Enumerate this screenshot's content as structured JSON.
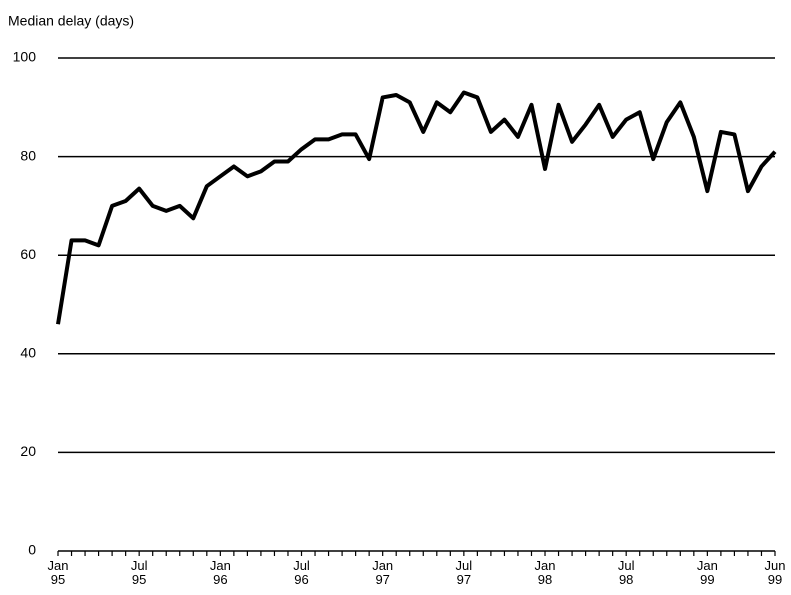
{
  "chart_data": {
    "type": "line",
    "y_label": "Median delay (days)",
    "categories": [
      "Jan 95",
      null,
      null,
      null,
      null,
      null,
      "Jul 95",
      null,
      null,
      null,
      null,
      null,
      "Jan 96",
      null,
      null,
      null,
      null,
      null,
      "Jul 96",
      null,
      null,
      null,
      null,
      null,
      "Jan 97",
      null,
      null,
      null,
      null,
      null,
      "Jul 97",
      null,
      null,
      null,
      null,
      null,
      "Jan 98",
      null,
      null,
      null,
      null,
      null,
      "Jul 98",
      null,
      null,
      null,
      null,
      null,
      "Jan 99",
      null,
      null,
      null,
      null,
      "Jun 99"
    ],
    "values": [
      46,
      63,
      63,
      62,
      70,
      71,
      73.5,
      70,
      69,
      70,
      67.5,
      74,
      76,
      78,
      76,
      77,
      79,
      79,
      81.5,
      83.5,
      83.5,
      84.5,
      84.5,
      79.5,
      92,
      92.5,
      91,
      85,
      91,
      89,
      93,
      92,
      85,
      87.5,
      84,
      90.5,
      77.5,
      90.5,
      83,
      86.5,
      90.5,
      84,
      87.5,
      89,
      79.5,
      87,
      91,
      84,
      73,
      85,
      84.5,
      73,
      78,
      81
    ],
    "color": "#000000",
    "ylim": [
      0,
      100
    ],
    "yticks": [
      0,
      20,
      40,
      60,
      80,
      100
    ],
    "grid": true
  }
}
